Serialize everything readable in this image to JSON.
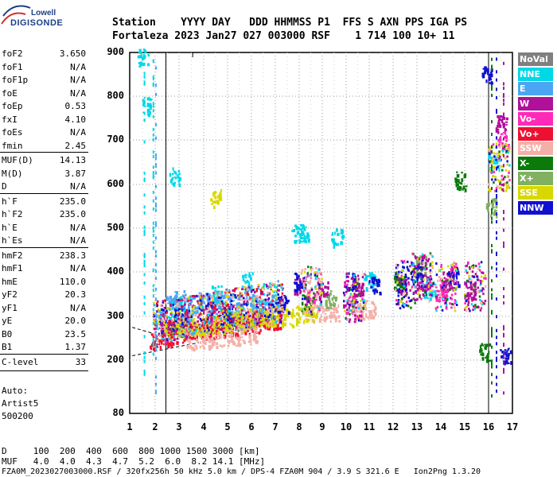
{
  "logo": {
    "line1": "Lowell",
    "line2": "DIGISONDE"
  },
  "header": {
    "row1": "Station    YYYY DAY   DDD HHMMSS P1  FFS S AXN PPS IGA PS",
    "row2": "Fortaleza 2023 Jan27 027 003000 RSF    1 714 100 10+ 11"
  },
  "params": [
    {
      "name": "foF2",
      "value": "3.650"
    },
    {
      "name": "foF1",
      "value": "N/A"
    },
    {
      "name": "foF1p",
      "value": "N/A"
    },
    {
      "name": "foE",
      "value": "N/A"
    },
    {
      "name": "foEp",
      "value": "0.53"
    },
    {
      "name": "fxI",
      "value": "4.10"
    },
    {
      "name": "foEs",
      "value": "N/A"
    },
    {
      "name": "fmin",
      "value": "2.45"
    },
    {
      "name": "MUF(D)",
      "value": "14.13"
    },
    {
      "name": "M(D)",
      "value": "3.87"
    },
    {
      "name": "D",
      "value": "N/A"
    },
    {
      "name": "h`F",
      "value": "235.0"
    },
    {
      "name": "h`F2",
      "value": "235.0"
    },
    {
      "name": "h`E",
      "value": "N/A"
    },
    {
      "name": "h`Es",
      "value": "N/A"
    },
    {
      "name": "hmF2",
      "value": "238.3"
    },
    {
      "name": "hmF1",
      "value": "N/A"
    },
    {
      "name": "hmE",
      "value": "110.0"
    },
    {
      "name": "yF2",
      "value": "20.3"
    },
    {
      "name": "yF1",
      "value": "N/A"
    },
    {
      "name": "yE",
      "value": "20.0"
    },
    {
      "name": "B0",
      "value": "23.5"
    },
    {
      "name": "B1",
      "value": "1.37"
    },
    {
      "name": "C-level",
      "value": "33"
    }
  ],
  "auto": {
    "line1": "Auto:",
    "line2": "Artist5",
    "line3": "500200"
  },
  "footer": {
    "d_row": "D     100  200  400  600  800 1000 1500 3000 [km]",
    "muf_row": "MUF   4.0  4.0  4.3  4.7  5.2  6.0  8.2 14.1 [MHz]",
    "file_row": "FZA0M_2023027003000.RSF / 320fx256h 50 kHz 5.0 km / DPS-4 FZA0M 904 / 3.9 S 321.6 E   Ion2Png 1.3.20"
  },
  "legend": [
    {
      "label": "NoVal",
      "color": "#808080"
    },
    {
      "label": "NNE",
      "color": "#00d8e8"
    },
    {
      "label": "E",
      "color": "#4aa6f2"
    },
    {
      "label": "W",
      "color": "#b0109a"
    },
    {
      "label": "Vo-",
      "color": "#ff2ab8"
    },
    {
      "label": "Vo+",
      "color": "#ee1030"
    },
    {
      "label": "SSW",
      "color": "#f4b0a8"
    },
    {
      "label": "X-",
      "color": "#0a7a0a"
    },
    {
      "label": "X+",
      "color": "#80b060"
    },
    {
      "label": "SSE",
      "color": "#d8d800"
    },
    {
      "label": "NNW",
      "color": "#1010d0"
    }
  ],
  "chart_data": {
    "type": "scatter",
    "xlabel": "",
    "ylabel": "",
    "xlim": [
      1,
      17
    ],
    "ylim": [
      80,
      900
    ],
    "xticks": [
      "1",
      "2",
      "3",
      "4",
      "5",
      "6",
      "7",
      "8",
      "9",
      "10",
      "11",
      "12",
      "13",
      "14",
      "15",
      "16",
      "17"
    ],
    "yticks": [
      "900",
      "800",
      "700",
      "600",
      "500",
      "400",
      "300",
      "200",
      "80"
    ],
    "grid": true,
    "series": [
      {
        "name": "NNE",
        "color": "#00d8e8",
        "points": [
          [
            1.5,
            890
          ],
          [
            1.7,
            780
          ],
          [
            2.8,
            620
          ],
          [
            3.0,
            330
          ],
          [
            4.5,
            350
          ],
          [
            5.8,
            380
          ],
          [
            7.9,
            490
          ],
          [
            8.2,
            490
          ],
          [
            9.6,
            480
          ],
          [
            11.0,
            380
          ],
          [
            13.5,
            360
          ],
          [
            16.2,
            650
          ]
        ]
      },
      {
        "name": "E",
        "color": "#4aa6f2",
        "points": [
          [
            2.2,
            300
          ],
          [
            2.6,
            330
          ],
          [
            3.0,
            340
          ],
          [
            3.5,
            330
          ],
          [
            4.0,
            335
          ],
          [
            4.5,
            330
          ],
          [
            5.0,
            330
          ],
          [
            5.5,
            325
          ],
          [
            6.0,
            330
          ],
          [
            6.5,
            320
          ],
          [
            7.0,
            330
          ]
        ]
      },
      {
        "name": "W",
        "color": "#b0109a",
        "points": [
          [
            2.4,
            290
          ],
          [
            3.2,
            300
          ],
          [
            4.2,
            305
          ],
          [
            8.0,
            370
          ],
          [
            9.0,
            360
          ],
          [
            10.5,
            360
          ],
          [
            12.4,
            370
          ],
          [
            13.2,
            380
          ],
          [
            14.3,
            380
          ],
          [
            15.2,
            360
          ],
          [
            16.5,
            740
          ]
        ]
      },
      {
        "name": "Vo-",
        "color": "#ff2ab8",
        "points": [
          [
            2.5,
            260
          ],
          [
            3.5,
            270
          ],
          [
            4.5,
            280
          ],
          [
            8.5,
            340
          ],
          [
            10.2,
            330
          ],
          [
            14.0,
            350
          ],
          [
            16.6,
            700
          ]
        ]
      },
      {
        "name": "Vo+",
        "color": "#ee1030",
        "points": [
          [
            2.0,
            245
          ],
          [
            2.5,
            255
          ],
          [
            3.0,
            262
          ],
          [
            3.5,
            265
          ],
          [
            4.0,
            270
          ],
          [
            4.5,
            272
          ],
          [
            5.0,
            275
          ],
          [
            5.5,
            278
          ],
          [
            6.0,
            282
          ],
          [
            6.5,
            285
          ],
          [
            7.0,
            290
          ]
        ]
      },
      {
        "name": "SSW",
        "color": "#f4b0a8",
        "points": [
          [
            3.5,
            245
          ],
          [
            4.0,
            248
          ],
          [
            4.5,
            250
          ],
          [
            5.0,
            252
          ],
          [
            5.5,
            255
          ],
          [
            6.0,
            258
          ],
          [
            8.5,
            310
          ],
          [
            9.0,
            312
          ],
          [
            9.5,
            310
          ],
          [
            10.5,
            315
          ],
          [
            11.0,
            318
          ]
        ]
      },
      {
        "name": "X-",
        "color": "#0a7a0a",
        "points": [
          [
            2.6,
            280
          ],
          [
            5.2,
            290
          ],
          [
            8.3,
            330
          ],
          [
            12.2,
            380
          ],
          [
            14.8,
            610
          ],
          [
            15.8,
            220
          ]
        ]
      },
      {
        "name": "X+",
        "color": "#80b060",
        "points": [
          [
            3.0,
            290
          ],
          [
            6.2,
            300
          ],
          [
            9.3,
            340
          ],
          [
            13.1,
            420
          ],
          [
            16.1,
            550
          ]
        ]
      },
      {
        "name": "SSE",
        "color": "#d8d800",
        "points": [
          [
            2.5,
            270
          ],
          [
            3.0,
            275
          ],
          [
            3.5,
            278
          ],
          [
            4.0,
            280
          ],
          [
            4.5,
            282
          ],
          [
            5.0,
            285
          ],
          [
            5.5,
            290
          ],
          [
            6.0,
            295
          ],
          [
            6.5,
            298
          ],
          [
            7.0,
            300
          ],
          [
            7.5,
            300
          ],
          [
            8.0,
            305
          ],
          [
            8.5,
            310
          ],
          [
            4.5,
            570
          ]
        ]
      },
      {
        "name": "NNW",
        "color": "#1010d0",
        "points": [
          [
            3.0,
            300
          ],
          [
            5.0,
            310
          ],
          [
            7.3,
            330
          ],
          [
            8.0,
            380
          ],
          [
            10.2,
            380
          ],
          [
            11.2,
            370
          ],
          [
            13.0,
            400
          ],
          [
            14.5,
            390
          ],
          [
            15.9,
            850
          ],
          [
            16.7,
            210
          ]
        ]
      }
    ]
  }
}
